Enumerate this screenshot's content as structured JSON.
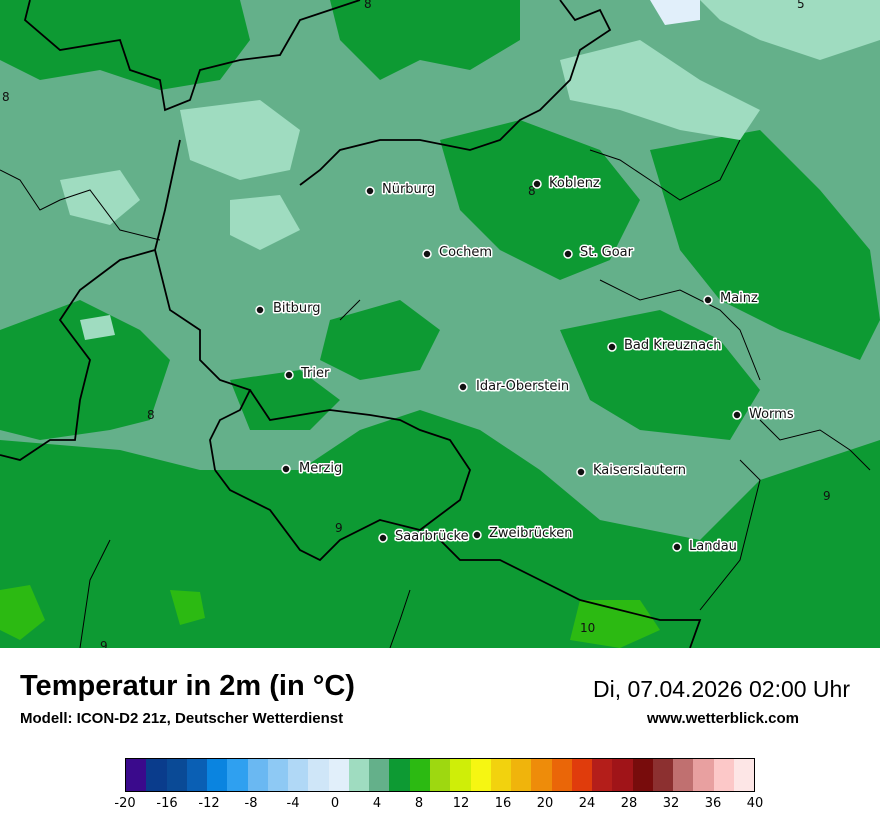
{
  "title": "Temperatur in 2m (in °C)",
  "model": "Modell: ICON-D2 21z, Deutscher Wetterdienst",
  "datetime": "Di, 07.04.2026 02:00 Uhr",
  "site": "www.wetterblick.com",
  "cities": [
    "Nürburg",
    "Koblenz",
    "Cochem",
    "St. Goar",
    "Mainz",
    "Bitburg",
    "Bad Kreuznach",
    "Trier",
    "Idar-Oberstein",
    "Worms",
    "Merzig",
    "Kaiserslautern",
    "Saarbrücke",
    "Zweibrücken",
    "Landau"
  ],
  "isotherm_labels": [
    "8",
    "5",
    "8",
    "8",
    "8",
    "9",
    "9",
    "9",
    "10"
  ],
  "legend": {
    "colors": [
      "#3a0a8c",
      "#0a3c8c",
      "#0a4a96",
      "#0a5fb4",
      "#0a84e0",
      "#2fa0f0",
      "#6ab8f2",
      "#8ec9f4",
      "#b0d8f6",
      "#cfe6f8",
      "#e1effa",
      "#9fdcc0",
      "#64b08a",
      "#0d9a33",
      "#2cba12",
      "#9ed810",
      "#cfee08",
      "#f6f612",
      "#f2d20e",
      "#f0b40c",
      "#ee8c0a",
      "#ea6608",
      "#e03c0c",
      "#b41e1a",
      "#a01418",
      "#780c0c",
      "#8c3030",
      "#c07070",
      "#e8a0a0",
      "#fcc8c8",
      "#fde6e6"
    ],
    "ticks": [
      "-20",
      "-16",
      "-12",
      "-8",
      "-4",
      "0",
      "4",
      "8",
      "12",
      "16",
      "20",
      "24",
      "28",
      "32",
      "36",
      "40"
    ]
  }
}
